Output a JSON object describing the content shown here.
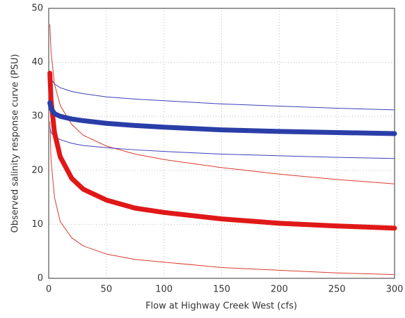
{
  "chart_data": {
    "type": "line",
    "xlabel": "Flow at Highway Creek West (cfs)",
    "ylabel": "Observed salinity response curve (PSU)",
    "x": [
      1,
      2,
      5,
      10,
      20,
      30,
      50,
      75,
      100,
      150,
      200,
      250,
      300
    ],
    "series": [
      {
        "color": "#d93a2b",
        "line_width": 1,
        "values": [
          47,
          42,
          36,
          32,
          28.5,
          26.5,
          24.5,
          23,
          22,
          20.5,
          19.3,
          18.3,
          17.5
        ]
      },
      {
        "color": "#d93a2b",
        "line_width": 1,
        "values": [
          29,
          22,
          15,
          10.5,
          7.5,
          6,
          4.5,
          3.5,
          3,
          2,
          1.5,
          1,
          0.7
        ]
      },
      {
        "color": "#3b3fb8",
        "line_width": 1,
        "values": [
          38,
          37,
          36,
          35.3,
          34.6,
          34.2,
          33.6,
          33.2,
          32.9,
          32.3,
          31.9,
          31.5,
          31.2
        ]
      },
      {
        "color": "#3b3fb8",
        "line_width": 1,
        "values": [
          28,
          27,
          26.2,
          25.7,
          25,
          24.6,
          24.2,
          23.8,
          23.5,
          23,
          22.7,
          22.4,
          22.2
        ]
      },
      {
        "color": "#e01818",
        "line_width": 7,
        "values": [
          38,
          33,
          27,
          22.5,
          18.5,
          16.5,
          14.5,
          13,
          12.2,
          11,
          10.2,
          9.7,
          9.3
        ]
      },
      {
        "color": "#2a3ea8",
        "line_width": 7,
        "values": [
          32.5,
          31.5,
          30.5,
          30,
          29.5,
          29.2,
          28.7,
          28.3,
          28,
          27.5,
          27.2,
          27,
          26.8
        ]
      }
    ],
    "xlim": [
      0,
      300
    ],
    "xticks": [
      0,
      50,
      100,
      150,
      200,
      250,
      300
    ],
    "ylim": [
      0,
      50
    ],
    "yticks": [
      0,
      10,
      20,
      30,
      40,
      50
    ],
    "grid": true
  }
}
